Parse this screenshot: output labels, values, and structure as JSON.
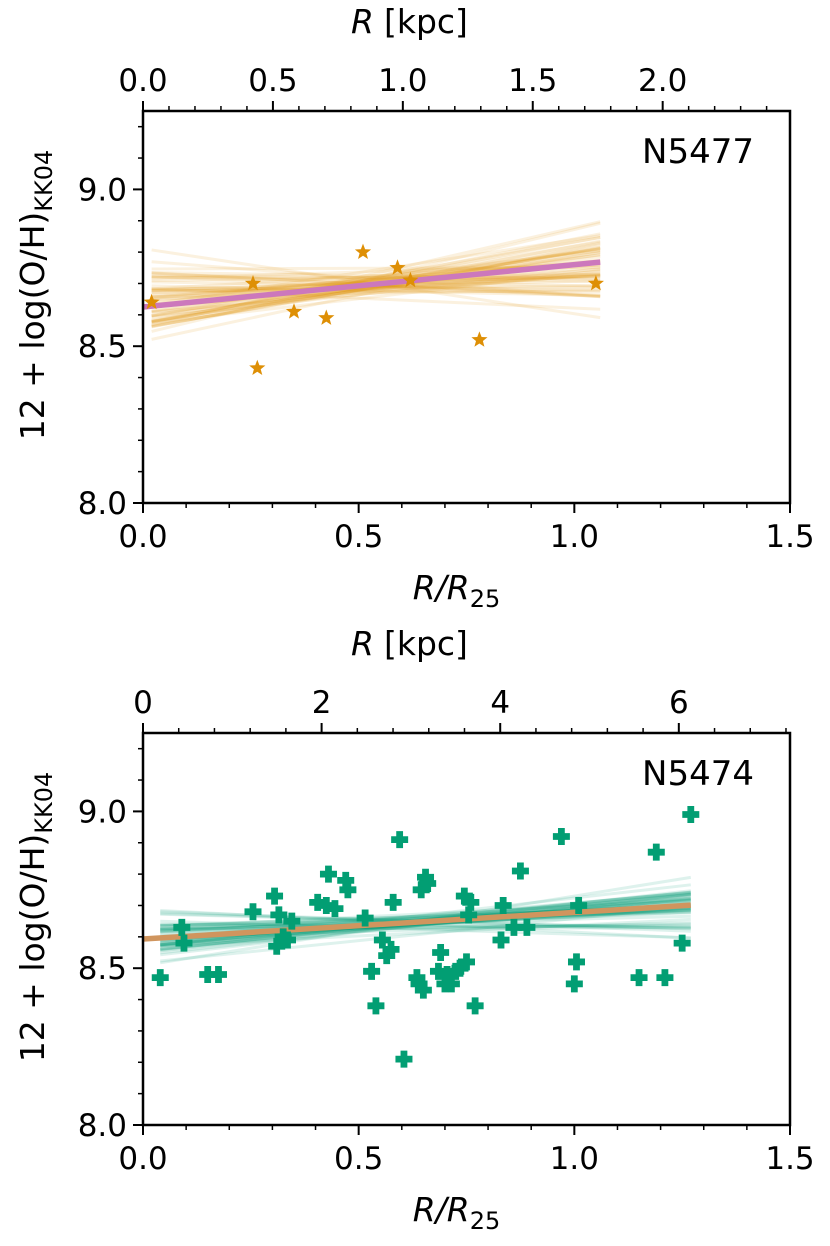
{
  "chart_data": [
    {
      "type": "scatter",
      "galaxy": "N5477",
      "annotation": "N5477",
      "xlabel": "R/R25",
      "xlabel_main": "R/R",
      "xlabel_sub": "25",
      "ylabel": "12 + log(O/H)KK04",
      "ylabel_main": "12 + log(O/H)",
      "ylabel_sub": "KK04",
      "top_xlabel": "R [kpc]",
      "top_xlabel_main": "R",
      "top_xlabel_unit": "[kpc]",
      "xlim": [
        0.0,
        1.5
      ],
      "ylim": [
        8.0,
        9.25
      ],
      "xticks": [
        0.0,
        0.5,
        1.0,
        1.5
      ],
      "xtick_labels": [
        "0.0",
        "0.5",
        "1.0",
        "1.5"
      ],
      "yticks": [
        8.0,
        8.5,
        9.0
      ],
      "ytick_labels": [
        "8.0",
        "8.5",
        "9.0"
      ],
      "top_scale_kpc_per_r25": 1.66,
      "top_ticks": [
        0.0,
        0.5,
        1.0,
        1.5,
        2.0
      ],
      "top_tick_labels": [
        "0.0",
        "0.5",
        "1.0",
        "1.5",
        "2.0"
      ],
      "top_minor_step": 0.1,
      "marker": "star",
      "marker_color": "#DE8F05",
      "fit_line_color": "#CC78BC",
      "mc_line_color": "#DE8F05",
      "points": [
        {
          "x": 0.02,
          "y": 8.64
        },
        {
          "x": 0.255,
          "y": 8.7
        },
        {
          "x": 0.265,
          "y": 8.43
        },
        {
          "x": 0.35,
          "y": 8.61
        },
        {
          "x": 0.425,
          "y": 8.59
        },
        {
          "x": 0.51,
          "y": 8.8
        },
        {
          "x": 0.59,
          "y": 8.75
        },
        {
          "x": 0.62,
          "y": 8.71
        },
        {
          "x": 0.78,
          "y": 8.52
        },
        {
          "x": 1.05,
          "y": 8.7
        }
      ],
      "fit": {
        "x_range": [
          0.0,
          1.06
        ],
        "intercept": 8.625,
        "slope": 0.135
      },
      "mc_fits": {
        "count": 60,
        "x_range": [
          0.02,
          1.06
        ],
        "pivot_x": 0.5,
        "pivot_y": 8.693,
        "slope_spread": 0.11,
        "pivot_spread": 0.02
      }
    },
    {
      "type": "scatter",
      "galaxy": "N5474",
      "annotation": "N5474",
      "xlabel": "R/R25",
      "xlabel_main": "R/R",
      "xlabel_sub": "25",
      "ylabel": "12 + log(O/H)KK04",
      "ylabel_main": "12 + log(O/H)",
      "ylabel_sub": "KK04",
      "top_xlabel": "R [kpc]",
      "top_xlabel_main": "R",
      "top_xlabel_unit": "[kpc]",
      "xlim": [
        0.0,
        1.5
      ],
      "ylim": [
        8.0,
        9.25
      ],
      "xticks": [
        0.0,
        0.5,
        1.0,
        1.5
      ],
      "xtick_labels": [
        "0.0",
        "0.5",
        "1.0",
        "1.5"
      ],
      "yticks": [
        8.0,
        8.5,
        9.0
      ],
      "ytick_labels": [
        "8.0",
        "8.5",
        "9.0"
      ],
      "top_scale_kpc_per_r25": 4.83,
      "top_ticks": [
        0,
        2,
        4,
        6
      ],
      "top_tick_labels": [
        "0",
        "2",
        "4",
        "6"
      ],
      "top_minor_step": 0.4,
      "marker": "plus",
      "marker_color": "#029E73",
      "fit_line_color": "#D0955E",
      "mc_line_color": "#029E73",
      "points": [
        {
          "x": 0.04,
          "y": 8.47
        },
        {
          "x": 0.09,
          "y": 8.63
        },
        {
          "x": 0.095,
          "y": 8.58
        },
        {
          "x": 0.15,
          "y": 8.48
        },
        {
          "x": 0.175,
          "y": 8.48
        },
        {
          "x": 0.255,
          "y": 8.68
        },
        {
          "x": 0.305,
          "y": 8.73
        },
        {
          "x": 0.31,
          "y": 8.57
        },
        {
          "x": 0.315,
          "y": 8.67
        },
        {
          "x": 0.325,
          "y": 8.6
        },
        {
          "x": 0.335,
          "y": 8.59
        },
        {
          "x": 0.345,
          "y": 8.65
        },
        {
          "x": 0.405,
          "y": 8.71
        },
        {
          "x": 0.425,
          "y": 8.7
        },
        {
          "x": 0.43,
          "y": 8.8
        },
        {
          "x": 0.445,
          "y": 8.69
        },
        {
          "x": 0.47,
          "y": 8.78
        },
        {
          "x": 0.475,
          "y": 8.75
        },
        {
          "x": 0.515,
          "y": 8.66
        },
        {
          "x": 0.53,
          "y": 8.49
        },
        {
          "x": 0.54,
          "y": 8.38
        },
        {
          "x": 0.555,
          "y": 8.59
        },
        {
          "x": 0.565,
          "y": 8.54
        },
        {
          "x": 0.575,
          "y": 8.56
        },
        {
          "x": 0.58,
          "y": 8.71
        },
        {
          "x": 0.595,
          "y": 8.91
        },
        {
          "x": 0.605,
          "y": 8.21
        },
        {
          "x": 0.635,
          "y": 8.47
        },
        {
          "x": 0.64,
          "y": 8.45
        },
        {
          "x": 0.645,
          "y": 8.75
        },
        {
          "x": 0.65,
          "y": 8.43
        },
        {
          "x": 0.655,
          "y": 8.79
        },
        {
          "x": 0.66,
          "y": 8.77
        },
        {
          "x": 0.685,
          "y": 8.49
        },
        {
          "x": 0.69,
          "y": 8.55
        },
        {
          "x": 0.7,
          "y": 8.45
        },
        {
          "x": 0.705,
          "y": 8.48
        },
        {
          "x": 0.715,
          "y": 8.45
        },
        {
          "x": 0.725,
          "y": 8.49
        },
        {
          "x": 0.735,
          "y": 8.5
        },
        {
          "x": 0.745,
          "y": 8.73
        },
        {
          "x": 0.75,
          "y": 8.52
        },
        {
          "x": 0.755,
          "y": 8.67
        },
        {
          "x": 0.76,
          "y": 8.71
        },
        {
          "x": 0.77,
          "y": 8.38
        },
        {
          "x": 0.83,
          "y": 8.59
        },
        {
          "x": 0.835,
          "y": 8.7
        },
        {
          "x": 0.86,
          "y": 8.63
        },
        {
          "x": 0.875,
          "y": 8.81
        },
        {
          "x": 0.89,
          "y": 8.63
        },
        {
          "x": 0.97,
          "y": 8.92
        },
        {
          "x": 1.0,
          "y": 8.45
        },
        {
          "x": 1.005,
          "y": 8.52
        },
        {
          "x": 1.01,
          "y": 8.7
        },
        {
          "x": 1.15,
          "y": 8.47
        },
        {
          "x": 1.19,
          "y": 8.87
        },
        {
          "x": 1.21,
          "y": 8.47
        },
        {
          "x": 1.25,
          "y": 8.58
        },
        {
          "x": 1.27,
          "y": 8.99
        }
      ],
      "fit": {
        "x_range": [
          0.0,
          1.27
        ],
        "intercept": 8.593,
        "slope": 0.085
      },
      "mc_fits": {
        "count": 60,
        "x_range": [
          0.04,
          1.27
        ],
        "pivot_x": 0.65,
        "pivot_y": 8.648,
        "slope_spread": 0.055,
        "pivot_spread": 0.012
      }
    }
  ]
}
